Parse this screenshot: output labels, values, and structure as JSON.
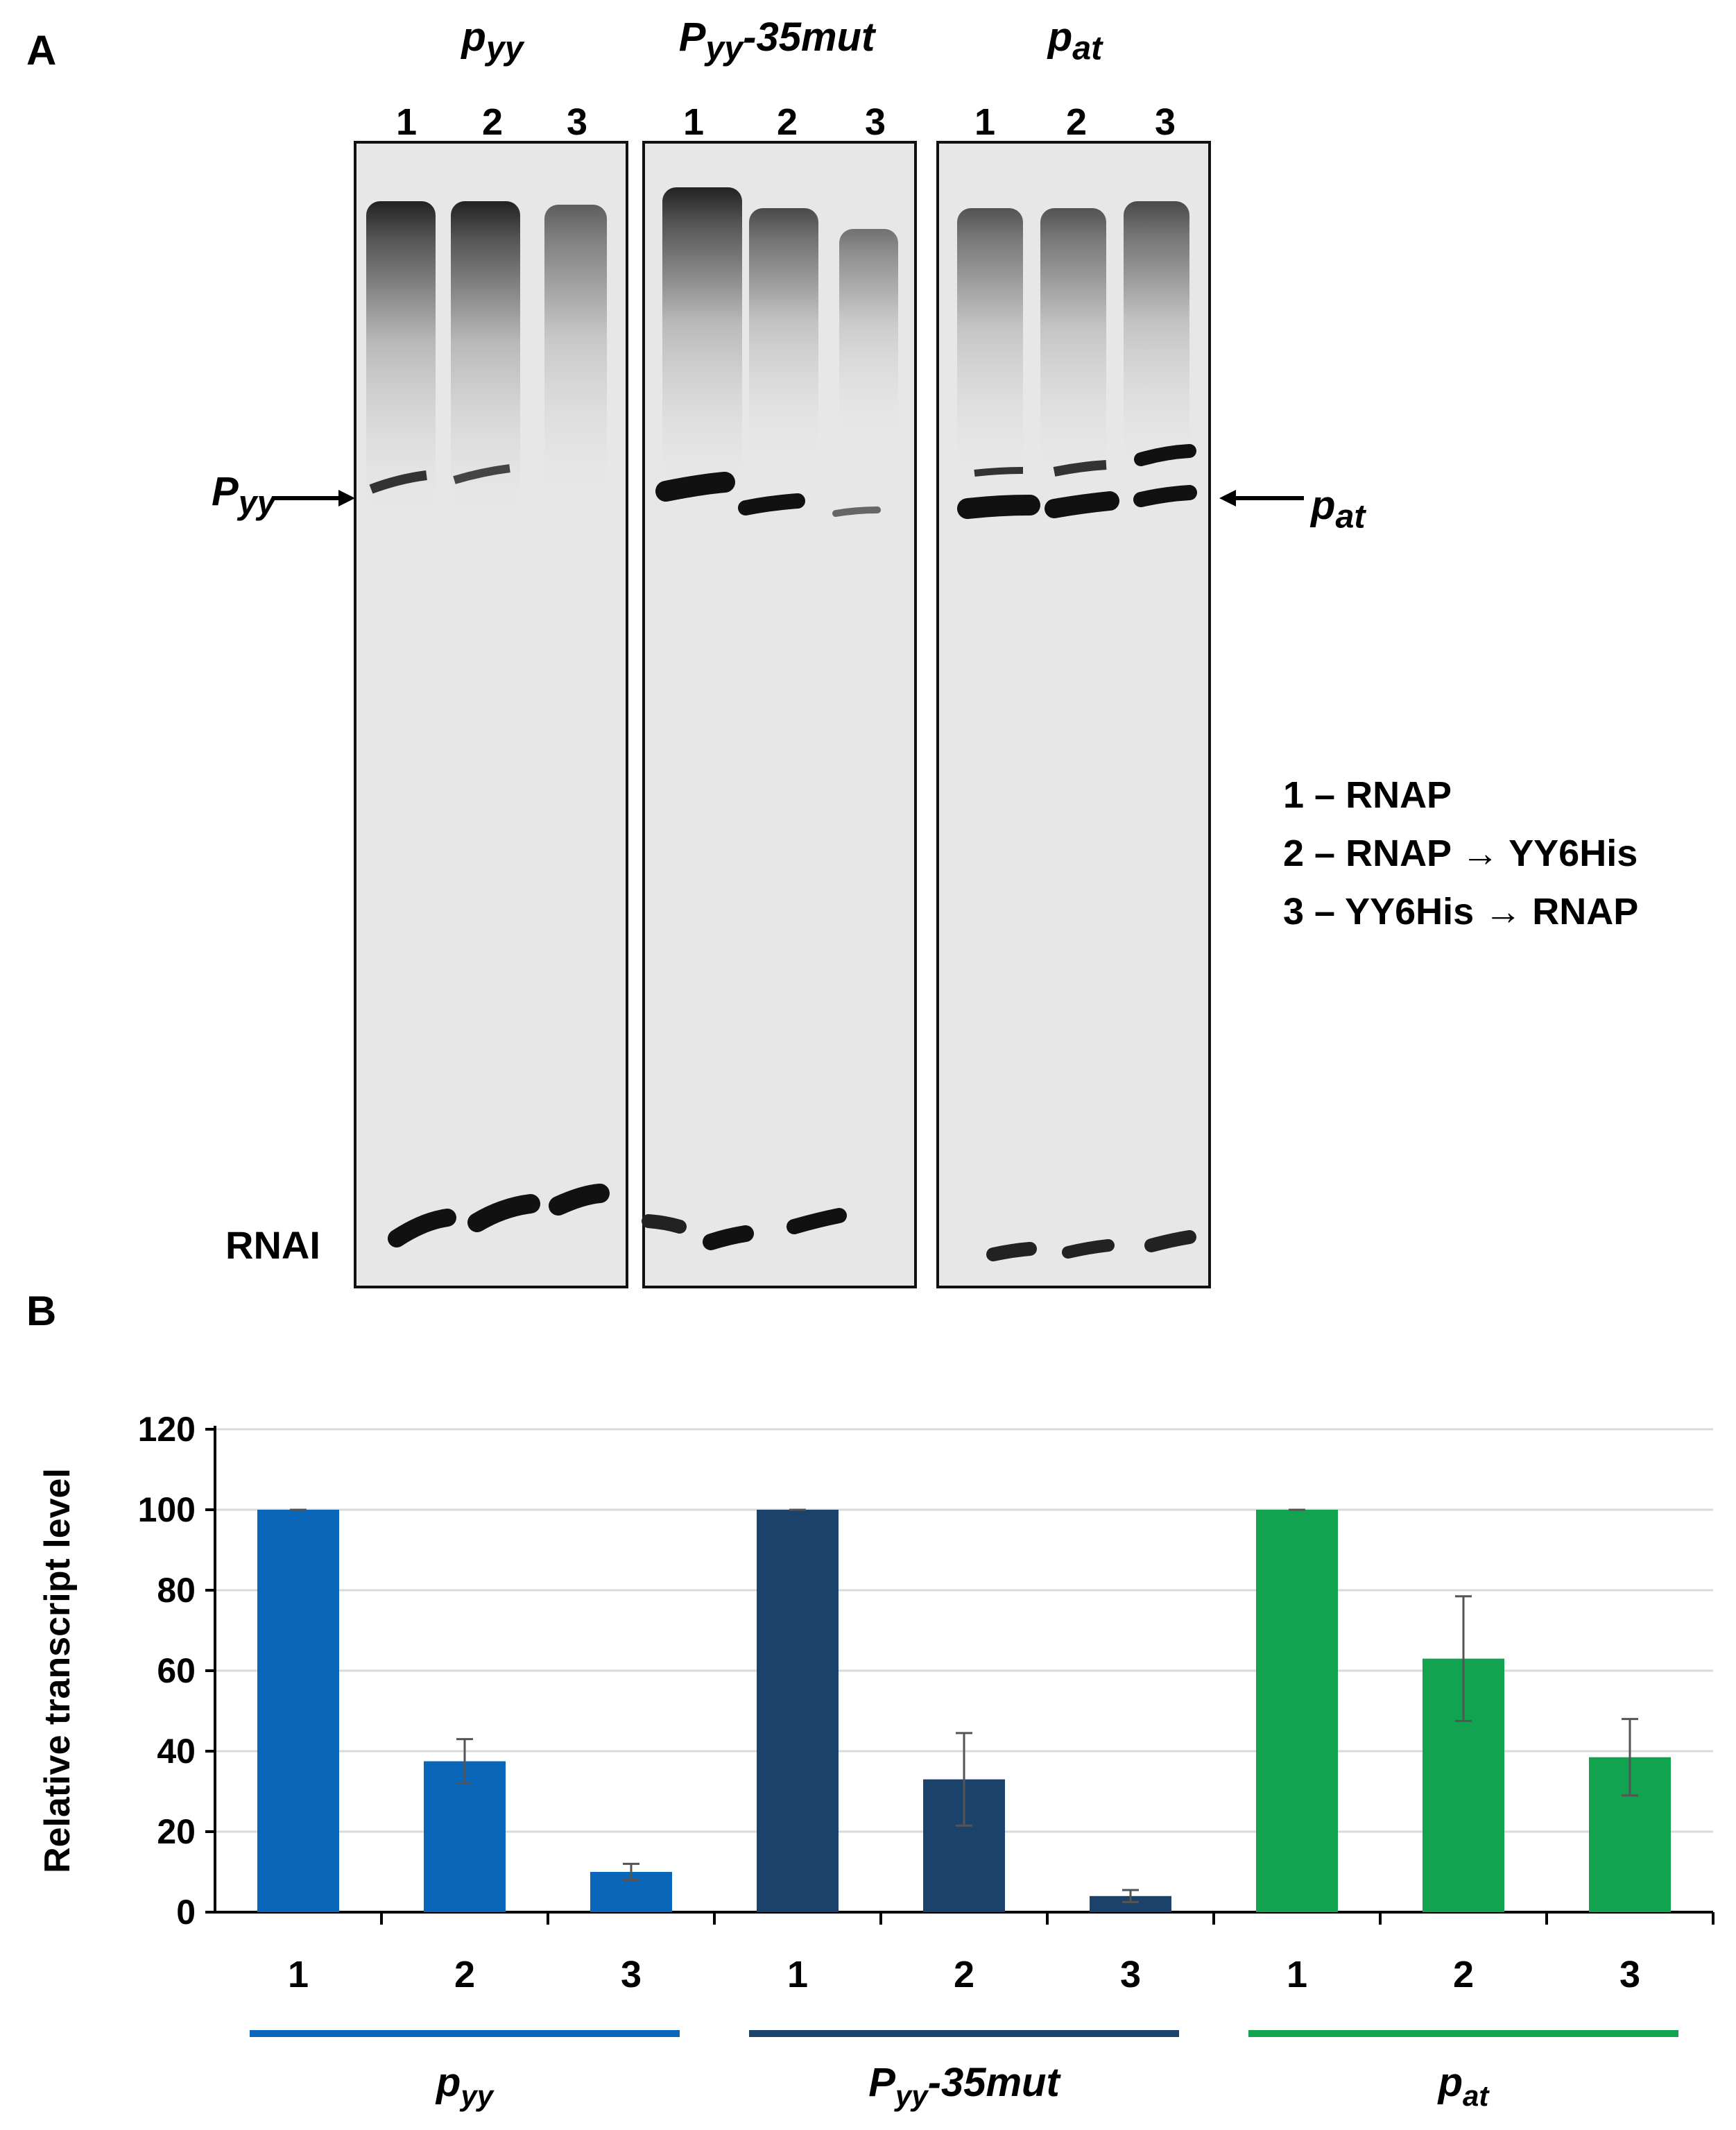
{
  "panels": {
    "a_label": "A",
    "b_label": "B"
  },
  "gel": {
    "groups": [
      {
        "main": "p",
        "sub": "yy",
        "suffix": ""
      },
      {
        "main": "P",
        "sub": "yy",
        "suffix": "-35mut"
      },
      {
        "main": "p",
        "sub": "at",
        "suffix": ""
      }
    ],
    "lane_numbers": [
      "1",
      "2",
      "3"
    ],
    "left_marker": {
      "main": "P",
      "sub": "yy"
    },
    "right_marker": {
      "main": "p",
      "sub": "at"
    },
    "bottom_marker": "RNAI",
    "legend": [
      "1 – RNAP",
      "2 – RNAP → YY6His",
      "3 – YY6His → RNAP"
    ]
  },
  "colors": {
    "pyy": "#0a66b8",
    "pyy35mut": "#1b426b",
    "pat": "#12a351",
    "gel_bg": "#e7e7e7",
    "band": "#111111"
  },
  "chart_data": {
    "type": "bar",
    "ylabel": "Relative transcript level",
    "ylim": [
      0,
      120
    ],
    "yticks": [
      0,
      20,
      40,
      60,
      80,
      100,
      120
    ],
    "grid": true,
    "groups": [
      {
        "name": "p_yy",
        "label_main": "p",
        "label_sub": "yy",
        "label_suffix": "",
        "categories": [
          "1",
          "2",
          "3"
        ],
        "values": [
          100,
          37.5,
          10
        ],
        "errors": [
          0,
          5.5,
          2
        ]
      },
      {
        "name": "P_yy-35mut",
        "label_main": "P",
        "label_sub": "yy",
        "label_suffix": "-35mut",
        "categories": [
          "1",
          "2",
          "3"
        ],
        "values": [
          100,
          33,
          4
        ],
        "errors": [
          0,
          11.5,
          1.5
        ]
      },
      {
        "name": "p_at",
        "label_main": "p",
        "label_sub": "at",
        "label_suffix": "",
        "categories": [
          "1",
          "2",
          "3"
        ],
        "values": [
          100,
          63,
          38.5
        ],
        "errors": [
          0,
          15.5,
          9.5
        ]
      }
    ]
  }
}
